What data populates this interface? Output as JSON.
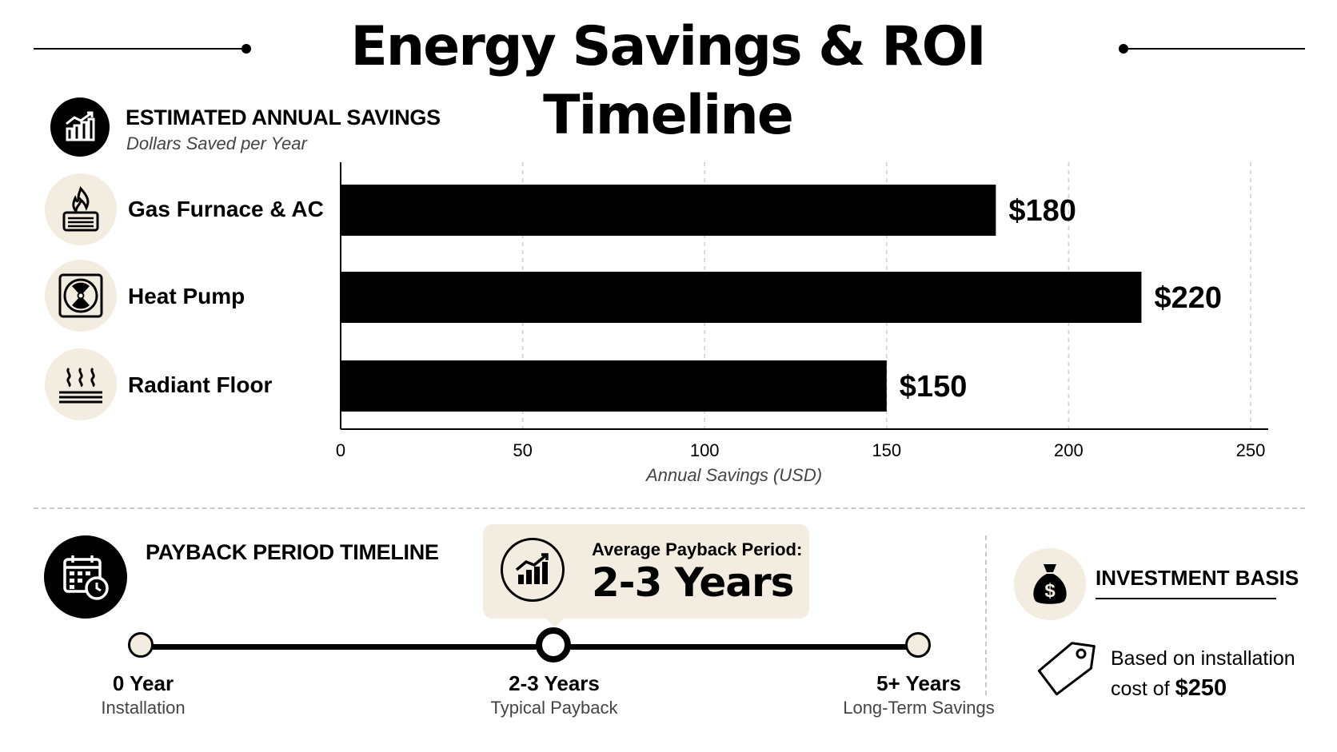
{
  "title": "Energy Savings & ROI Timeline",
  "savings_section": {
    "title": "ESTIMATED ANNUAL SAVINGS",
    "subtitle": "Dollars Saved per Year",
    "icon": "bar-chart-growth-icon"
  },
  "categories": [
    {
      "label": "Gas Furnace & AC",
      "icon": "furnace-flame-icon"
    },
    {
      "label": "Heat Pump",
      "icon": "fan-unit-icon"
    },
    {
      "label": "Radiant Floor",
      "icon": "radiant-heat-icon"
    }
  ],
  "chart_data": {
    "type": "bar",
    "orientation": "horizontal",
    "categories": [
      "Gas Furnace & AC",
      "Heat Pump",
      "Radiant Floor"
    ],
    "values": [
      180,
      220,
      150
    ],
    "data_labels": [
      "$180",
      "$220",
      "$150"
    ],
    "xlabel": "Annual Savings (USD)",
    "xlim": [
      0,
      250
    ],
    "ticks": [
      0,
      50,
      100,
      150,
      200,
      250
    ],
    "grid": "vertical dashed",
    "bar_color": "#000000"
  },
  "payback_section": {
    "title": "PAYBACK PERIOD TIMELINE",
    "icon": "calendar-clock-icon",
    "callout_label": "Average Payback Period:",
    "callout_value": "2-3 Years",
    "callout_icon": "growth-chart-icon",
    "milestones": [
      {
        "title": "0 Year",
        "subtitle": "Installation"
      },
      {
        "title": "2-3 Years",
        "subtitle": "Typical Payback"
      },
      {
        "title": "5+ Years",
        "subtitle": "Long-Term Savings"
      }
    ]
  },
  "investment": {
    "title": "INVESTMENT BASIS",
    "icon": "money-bag-icon",
    "tag_icon": "price-tag-icon",
    "line1": "Based on installation",
    "line2_prefix": "cost of ",
    "amount": "$250"
  },
  "colors": {
    "accent_beige": "#f3ece0",
    "ink": "#000000",
    "muted": "#444444"
  }
}
